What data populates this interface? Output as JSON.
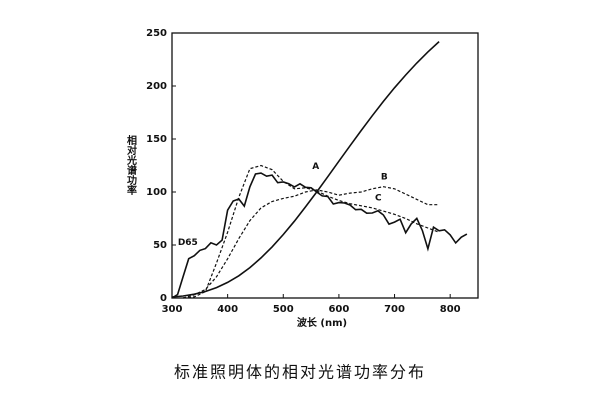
{
  "chart_data": {
    "type": "line",
    "caption": "标准照明体的相对光谱功率分布",
    "x_label": "波长 (nm)",
    "y_label": "相对光谱功率",
    "xlim": [
      300,
      850
    ],
    "ylim": [
      0,
      250
    ],
    "xticks": [
      300,
      400,
      500,
      600,
      700,
      800
    ],
    "yticks": [
      0,
      50,
      100,
      150,
      200,
      250
    ],
    "series": [
      {
        "name": "A",
        "color": "#111111",
        "dash": false,
        "x": [
          300,
          320,
          340,
          360,
          380,
          400,
          420,
          440,
          460,
          480,
          500,
          520,
          540,
          560,
          580,
          600,
          620,
          640,
          660,
          680,
          700,
          720,
          740,
          760,
          780
        ],
        "values": [
          0.93,
          1.93,
          3.59,
          6.14,
          9.8,
          14.71,
          20.99,
          28.7,
          37.81,
          48.24,
          59.86,
          72.5,
          85.95,
          100,
          114.44,
          129.04,
          143.62,
          157.98,
          171.96,
          185.43,
          198.26,
          210.37,
          221.69,
          232.19,
          241.85
        ]
      },
      {
        "name": "B",
        "color": "#111111",
        "dash": true,
        "x": [
          320,
          340,
          360,
          380,
          400,
          420,
          440,
          460,
          480,
          500,
          520,
          540,
          560,
          580,
          600,
          620,
          640,
          660,
          680,
          700,
          720,
          740,
          760,
          780
        ],
        "values": [
          0,
          3,
          8,
          20,
          37,
          56,
          73,
          85,
          91,
          94,
          96,
          100,
          102,
          100,
          97,
          99,
          100,
          103,
          105,
          103,
          98,
          93,
          88,
          88
        ]
      },
      {
        "name": "C",
        "color": "#111111",
        "dash": true,
        "x": [
          320,
          340,
          360,
          380,
          400,
          420,
          440,
          460,
          480,
          500,
          520,
          540,
          560,
          580,
          600,
          620,
          640,
          660,
          680,
          700,
          720,
          740,
          760,
          780
        ],
        "values": [
          0,
          1,
          6,
          33,
          62,
          95,
          122,
          125,
          121,
          110,
          103,
          104,
          101,
          96,
          92,
          89,
          87,
          85,
          82,
          79,
          75,
          70,
          66,
          62
        ]
      },
      {
        "name": "D65",
        "color": "#111111",
        "dash": false,
        "x": [
          300,
          310,
          320,
          330,
          340,
          350,
          360,
          370,
          380,
          390,
          400,
          410,
          420,
          430,
          440,
          450,
          460,
          470,
          480,
          490,
          500,
          510,
          520,
          530,
          540,
          550,
          560,
          570,
          580,
          590,
          600,
          610,
          620,
          630,
          640,
          650,
          660,
          670,
          680,
          690,
          700,
          710,
          720,
          730,
          740,
          750,
          760,
          770,
          780,
          790,
          800,
          810,
          820,
          830
        ],
        "values": [
          0.03,
          3.3,
          20.2,
          37.1,
          39.9,
          44.9,
          46.6,
          52.1,
          50,
          54.6,
          82.8,
          91.5,
          93.4,
          86.7,
          104.9,
          117,
          117.8,
          114.9,
          115.9,
          108.8,
          109.4,
          107.8,
          104.8,
          107.7,
          104.4,
          104,
          100,
          96.3,
          95.8,
          88.7,
          90,
          89.6,
          87.7,
          83.3,
          83.7,
          80,
          80.2,
          82.3,
          78.3,
          69.7,
          71.6,
          74.3,
          61.6,
          69.9,
          75.1,
          63.6,
          46.4,
          66.8,
          63.4,
          64.3,
          59.5,
          52,
          57.4,
          60.3
        ]
      }
    ]
  }
}
